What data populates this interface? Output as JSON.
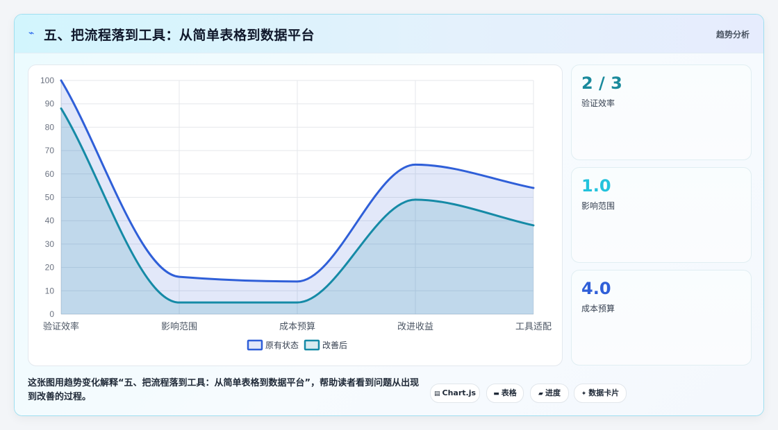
{
  "header": {
    "icon": "lightning-icon",
    "title": "五、把流程落到工具：从简单表格到数据平台",
    "tag": "趋势分析"
  },
  "chart_data": {
    "type": "line",
    "categories": [
      "验证效率",
      "影响范围",
      "成本预算",
      "改进收益",
      "工具适配"
    ],
    "series": [
      {
        "name": "原有状态",
        "values": [
          100,
          16,
          14,
          64,
          54
        ],
        "color": "#2f5fd8"
      },
      {
        "name": "改善后",
        "values": [
          88,
          5,
          5,
          49,
          38
        ],
        "color": "#158aa6"
      }
    ],
    "ylim": [
      0,
      100
    ],
    "yticks": [
      "0",
      "10",
      "20",
      "30",
      "40",
      "50",
      "60",
      "70",
      "80",
      "90",
      "100"
    ],
    "grid": true,
    "legend": "bottom"
  },
  "stats": [
    {
      "value": "2 / 3",
      "label": "验证效率",
      "color": "#1a8a9c"
    },
    {
      "value": "1.0",
      "label": "影响范围",
      "color": "#22c2dc"
    },
    {
      "value": "4.0",
      "label": "成本预算",
      "color": "#2f5fd8"
    }
  ],
  "footer": {
    "description": "这张图用趋势变化解释“五、把流程落到工具：从简单表格到数据平台”，帮助读者看到问题从出现到改善的过程。",
    "chips": [
      {
        "icon": "chart-icon",
        "glyph": "▤",
        "label": "Chart.js"
      },
      {
        "icon": "table-icon",
        "glyph": "▬",
        "label": "表格"
      },
      {
        "icon": "progress-icon",
        "glyph": "▰",
        "label": "进度"
      },
      {
        "icon": "sparkle-icon",
        "glyph": "✦",
        "label": "数据卡片"
      }
    ]
  }
}
